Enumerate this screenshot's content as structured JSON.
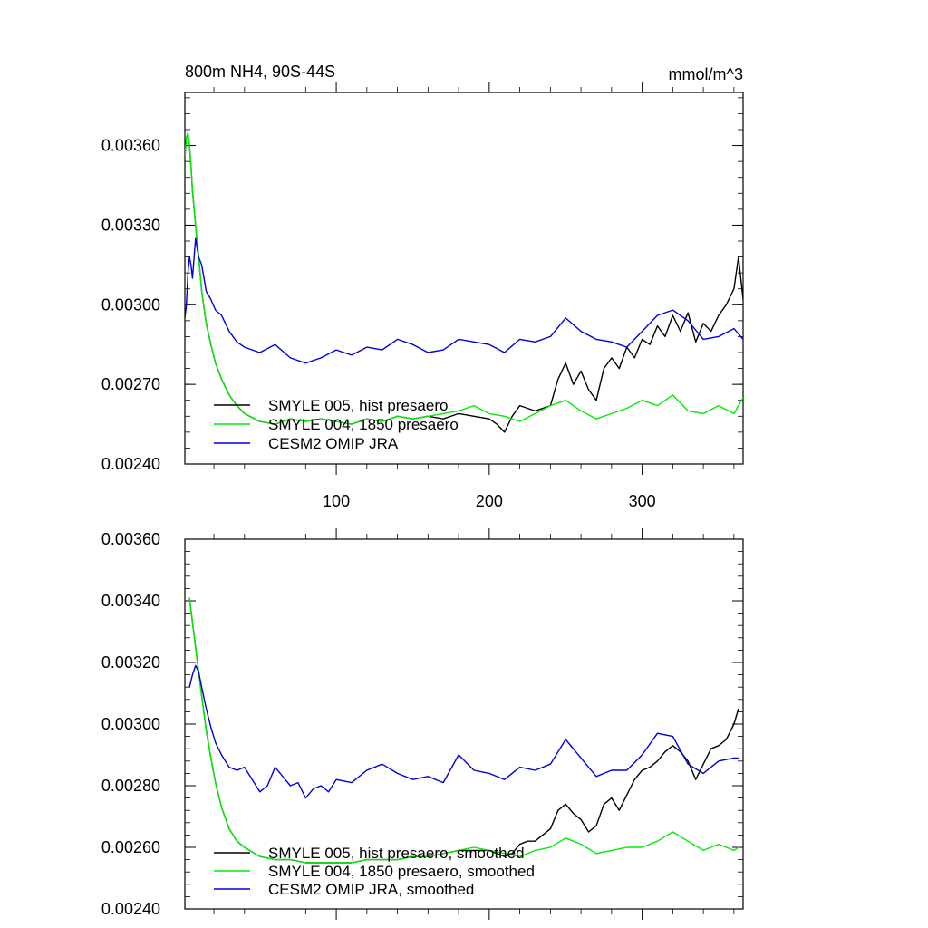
{
  "header": {
    "title": "800m NH4, 90S-44S",
    "units": "mmol/m^3"
  },
  "colors": {
    "hist": "#000000",
    "y1850": "#00ee00",
    "omip": "#0000dd"
  },
  "chart_data": [
    {
      "type": "line",
      "title": "800m NH4, 90S-44S",
      "units_label": "mmol/m^3",
      "xlim": [
        1,
        366
      ],
      "ylim": [
        0.0024,
        0.0038
      ],
      "x_ticks": [
        "100",
        "200",
        "300"
      ],
      "y_ticks": [
        "0.00240",
        "0.00270",
        "0.00300",
        "0.00330",
        "0.00360"
      ],
      "legend_position": "bottom-left",
      "series": [
        {
          "name": "SMYLE 005, hist presaero",
          "color": "#000000",
          "x": [
            1,
            2,
            3,
            4,
            5,
            6,
            8,
            10,
            12,
            15,
            18,
            21,
            25,
            30,
            35,
            40,
            50,
            60,
            70,
            80,
            90,
            100,
            110,
            120,
            130,
            140,
            150,
            160,
            170,
            180,
            190,
            200,
            205,
            210,
            215,
            220,
            230,
            240,
            245,
            250,
            255,
            260,
            265,
            270,
            275,
            280,
            285,
            290,
            295,
            300,
            305,
            310,
            315,
            320,
            325,
            330,
            335,
            340,
            345,
            350,
            355,
            360,
            363,
            366
          ],
          "y": [
            0.00355,
            0.00363,
            0.00364,
            0.0036,
            0.00352,
            0.00343,
            0.0033,
            0.00318,
            0.00305,
            0.00293,
            0.00285,
            0.00278,
            0.00272,
            0.00266,
            0.00262,
            0.00259,
            0.00256,
            0.00255,
            0.00257,
            0.00256,
            0.00257,
            0.00256,
            0.00255,
            0.00257,
            0.00256,
            0.00258,
            0.00257,
            0.00258,
            0.00257,
            0.00259,
            0.00258,
            0.00257,
            0.00255,
            0.00252,
            0.00258,
            0.00262,
            0.0026,
            0.00262,
            0.00272,
            0.00278,
            0.0027,
            0.00275,
            0.00268,
            0.00264,
            0.00276,
            0.0028,
            0.00276,
            0.00284,
            0.0028,
            0.00287,
            0.00285,
            0.00292,
            0.00288,
            0.00296,
            0.0029,
            0.00297,
            0.00286,
            0.00293,
            0.0029,
            0.00296,
            0.003,
            0.00306,
            0.00318,
            0.00302
          ]
        },
        {
          "name": "SMYLE 004, 1850 presaero",
          "color": "#00ee00",
          "x": [
            1,
            2,
            3,
            4,
            5,
            6,
            8,
            10,
            12,
            15,
            18,
            21,
            25,
            30,
            35,
            40,
            50,
            60,
            70,
            80,
            90,
            100,
            110,
            120,
            130,
            140,
            150,
            160,
            170,
            180,
            190,
            200,
            210,
            220,
            230,
            240,
            250,
            260,
            270,
            280,
            290,
            300,
            310,
            320,
            330,
            340,
            350,
            360,
            366
          ],
          "y": [
            0.00355,
            0.00363,
            0.00365,
            0.0036,
            0.00352,
            0.00343,
            0.0033,
            0.00318,
            0.00305,
            0.00293,
            0.00285,
            0.00278,
            0.00272,
            0.00266,
            0.00262,
            0.00259,
            0.00256,
            0.00255,
            0.00257,
            0.00256,
            0.00257,
            0.00256,
            0.00255,
            0.00257,
            0.00256,
            0.00258,
            0.00257,
            0.00258,
            0.00259,
            0.0026,
            0.00262,
            0.00259,
            0.00258,
            0.00256,
            0.00259,
            0.00262,
            0.00264,
            0.0026,
            0.00257,
            0.00259,
            0.00261,
            0.00264,
            0.00262,
            0.00266,
            0.0026,
            0.00259,
            0.00262,
            0.00259,
            0.00265
          ]
        },
        {
          "name": "CESM2 OMIP JRA",
          "color": "#0000dd",
          "x": [
            1,
            2,
            3,
            4,
            5,
            6,
            8,
            10,
            12,
            15,
            18,
            21,
            25,
            30,
            35,
            40,
            50,
            60,
            70,
            80,
            90,
            100,
            110,
            120,
            130,
            140,
            150,
            160,
            170,
            180,
            190,
            200,
            210,
            220,
            230,
            240,
            250,
            260,
            270,
            280,
            290,
            300,
            310,
            320,
            330,
            340,
            350,
            360,
            366
          ],
          "y": [
            0.00295,
            0.003,
            0.00312,
            0.00318,
            0.00315,
            0.0031,
            0.00325,
            0.00318,
            0.00315,
            0.00305,
            0.00302,
            0.00298,
            0.00296,
            0.0029,
            0.00286,
            0.00284,
            0.00282,
            0.00285,
            0.0028,
            0.00278,
            0.0028,
            0.00283,
            0.00281,
            0.00284,
            0.00283,
            0.00287,
            0.00285,
            0.00282,
            0.00283,
            0.00287,
            0.00286,
            0.00285,
            0.00282,
            0.00287,
            0.00286,
            0.00288,
            0.00295,
            0.0029,
            0.00287,
            0.00286,
            0.00284,
            0.0029,
            0.00296,
            0.00298,
            0.00294,
            0.00287,
            0.00288,
            0.00291,
            0.00287
          ]
        }
      ]
    },
    {
      "type": "line",
      "title": "",
      "xlim": [
        1,
        366
      ],
      "ylim": [
        0.0024,
        0.0036
      ],
      "y_ticks": [
        "0.00240",
        "0.00260",
        "0.00280",
        "0.00300",
        "0.00320",
        "0.00340",
        "0.00360"
      ],
      "legend_position": "bottom-left",
      "series": [
        {
          "name": "SMYLE 005, hist presaero, smoothed",
          "color": "#000000",
          "x": [
            4,
            6,
            8,
            10,
            12,
            15,
            18,
            21,
            25,
            30,
            35,
            40,
            50,
            60,
            70,
            80,
            90,
            100,
            110,
            120,
            130,
            140,
            150,
            160,
            170,
            180,
            190,
            200,
            210,
            215,
            220,
            225,
            230,
            235,
            240,
            245,
            250,
            255,
            260,
            265,
            270,
            275,
            280,
            285,
            290,
            295,
            300,
            305,
            310,
            315,
            320,
            325,
            330,
            335,
            340,
            345,
            350,
            355,
            360,
            363
          ],
          "y": [
            0.00341,
            0.00333,
            0.00325,
            0.00317,
            0.00309,
            0.00298,
            0.00289,
            0.00281,
            0.00273,
            0.00266,
            0.00262,
            0.0026,
            0.00257,
            0.00256,
            0.00256,
            0.00255,
            0.00255,
            0.00255,
            0.00255,
            0.00256,
            0.00256,
            0.00256,
            0.00257,
            0.00257,
            0.00258,
            0.00259,
            0.00259,
            0.00259,
            0.00257,
            0.00258,
            0.00261,
            0.00262,
            0.00262,
            0.00264,
            0.00266,
            0.00272,
            0.00274,
            0.00271,
            0.00269,
            0.00265,
            0.00267,
            0.00274,
            0.00276,
            0.00272,
            0.00277,
            0.00282,
            0.00285,
            0.00286,
            0.00288,
            0.00291,
            0.00293,
            0.00291,
            0.00288,
            0.00282,
            0.00287,
            0.00292,
            0.00293,
            0.00295,
            0.003,
            0.00305
          ]
        },
        {
          "name": "SMYLE 004, 1850 presaero, smoothed",
          "color": "#00ee00",
          "x": [
            4,
            6,
            8,
            10,
            12,
            15,
            18,
            21,
            25,
            30,
            35,
            40,
            50,
            60,
            70,
            80,
            90,
            100,
            110,
            120,
            130,
            140,
            150,
            160,
            170,
            180,
            190,
            200,
            210,
            220,
            230,
            240,
            250,
            260,
            270,
            280,
            290,
            300,
            310,
            320,
            330,
            340,
            350,
            360,
            363
          ],
          "y": [
            0.00341,
            0.00333,
            0.00325,
            0.00317,
            0.00309,
            0.00298,
            0.00289,
            0.00281,
            0.00273,
            0.00266,
            0.00262,
            0.0026,
            0.00257,
            0.00256,
            0.00256,
            0.00255,
            0.00255,
            0.00255,
            0.00255,
            0.00256,
            0.00256,
            0.00256,
            0.00257,
            0.00257,
            0.00258,
            0.00259,
            0.0026,
            0.00259,
            0.00258,
            0.00257,
            0.00259,
            0.0026,
            0.00263,
            0.00261,
            0.00258,
            0.00259,
            0.0026,
            0.0026,
            0.00262,
            0.00265,
            0.00262,
            0.00259,
            0.00261,
            0.00259,
            0.0026
          ]
        },
        {
          "name": "CESM2 OMIP JRA, smoothed",
          "color": "#0000dd",
          "x": [
            4,
            6,
            8,
            10,
            12,
            15,
            18,
            21,
            25,
            30,
            35,
            40,
            45,
            50,
            55,
            60,
            65,
            70,
            75,
            80,
            85,
            90,
            95,
            100,
            110,
            120,
            130,
            140,
            150,
            160,
            170,
            180,
            190,
            200,
            210,
            220,
            230,
            240,
            250,
            260,
            270,
            280,
            290,
            300,
            310,
            320,
            330,
            340,
            350,
            360,
            363
          ],
          "y": [
            0.00312,
            0.00316,
            0.00319,
            0.00317,
            0.00312,
            0.00305,
            0.00299,
            0.00294,
            0.0029,
            0.00286,
            0.00285,
            0.00286,
            0.00282,
            0.00278,
            0.0028,
            0.00286,
            0.00283,
            0.0028,
            0.00281,
            0.00276,
            0.00279,
            0.0028,
            0.00278,
            0.00282,
            0.00281,
            0.00285,
            0.00287,
            0.00284,
            0.00282,
            0.00283,
            0.00281,
            0.0029,
            0.00285,
            0.00284,
            0.00282,
            0.00286,
            0.00285,
            0.00287,
            0.00295,
            0.00289,
            0.00283,
            0.00285,
            0.00285,
            0.0029,
            0.00297,
            0.00296,
            0.00287,
            0.00284,
            0.00288,
            0.00289,
            0.00289
          ]
        }
      ]
    }
  ]
}
